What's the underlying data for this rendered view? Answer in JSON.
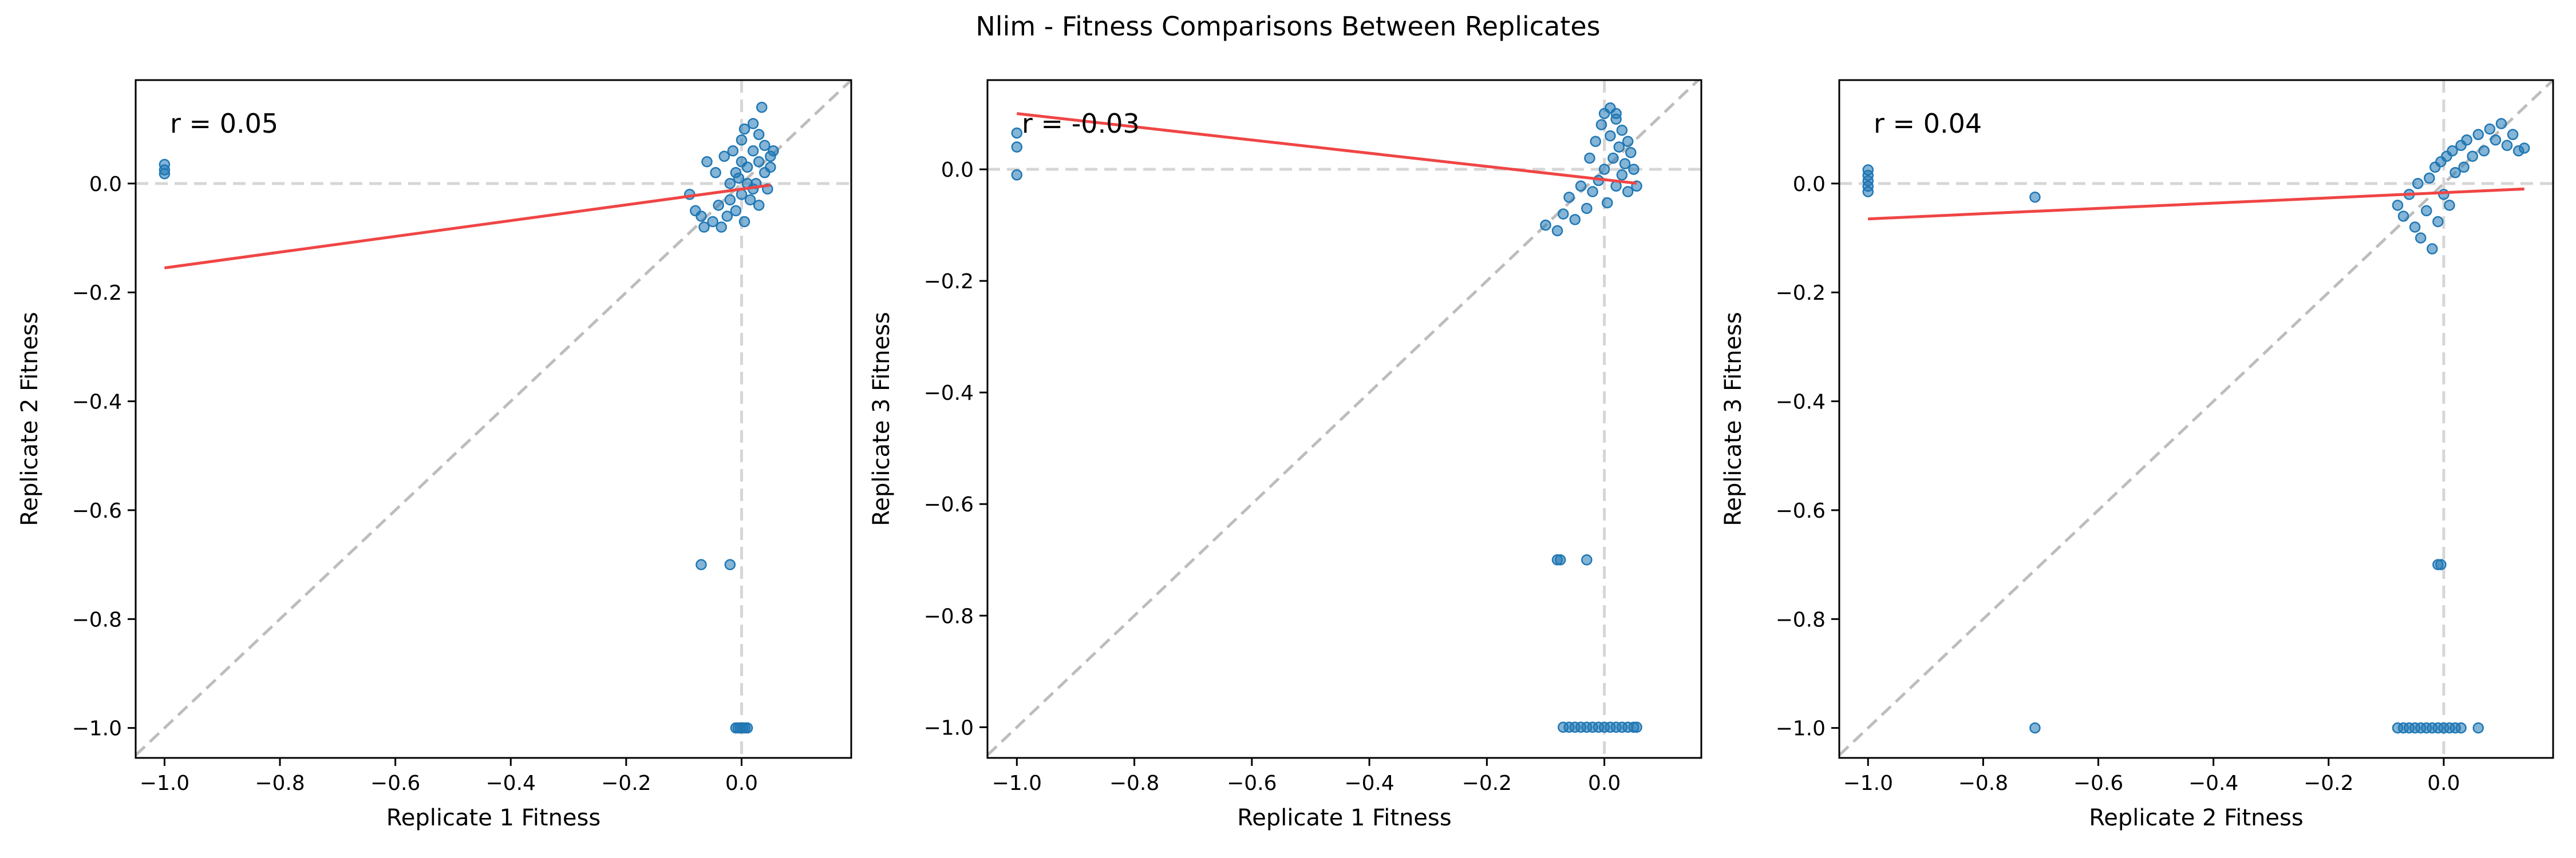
{
  "figure": {
    "title": "Nlim - Fitness Comparisons Between Replicates"
  },
  "chart_data": [
    {
      "type": "scatter",
      "xlabel": "Replicate 1 Fitness",
      "ylabel": "Replicate 2 Fitness",
      "xlim": [
        -1.05,
        0.19
      ],
      "ylim": [
        -1.055,
        0.19
      ],
      "xticks": [
        -1.0,
        -0.8,
        -0.6,
        -0.4,
        -0.2,
        0.0
      ],
      "yticks": [
        -1.0,
        -0.8,
        -0.6,
        -0.4,
        -0.2,
        0.0
      ],
      "annotation": "r = 0.05",
      "grid": false,
      "reference_lines": [
        "y = x (dashed gray)",
        "x = 0 (dashed)",
        "y = 0 (dashed)"
      ],
      "fit_line": {
        "x": [
          -1.0,
          0.05
        ],
        "y": [
          -0.155,
          -0.003
        ],
        "color": "#f04545"
      },
      "marker_color": "#1f77b4",
      "points": [
        [
          -1.0,
          0.035
        ],
        [
          -1.0,
          0.025
        ],
        [
          -1.0,
          0.018
        ],
        [
          -0.07,
          -0.7
        ],
        [
          -0.02,
          -0.7
        ],
        [
          -0.01,
          -1.0
        ],
        [
          -0.006,
          -1.0
        ],
        [
          -0.002,
          -1.0
        ],
        [
          0.002,
          -1.0
        ],
        [
          0.006,
          -1.0
        ],
        [
          0.01,
          -1.0
        ],
        [
          -0.09,
          -0.02
        ],
        [
          -0.08,
          -0.05
        ],
        [
          -0.07,
          -0.06
        ],
        [
          -0.065,
          -0.08
        ],
        [
          -0.06,
          0.04
        ],
        [
          -0.05,
          -0.07
        ],
        [
          -0.045,
          0.02
        ],
        [
          -0.04,
          -0.04
        ],
        [
          -0.035,
          -0.08
        ],
        [
          -0.03,
          0.05
        ],
        [
          -0.025,
          -0.06
        ],
        [
          -0.02,
          -0.03
        ],
        [
          -0.015,
          0.06
        ],
        [
          -0.01,
          -0.05
        ],
        [
          -0.005,
          0.01
        ],
        [
          0.0,
          -0.02
        ],
        [
          0.0,
          0.08
        ],
        [
          0.005,
          0.1
        ],
        [
          0.005,
          -0.07
        ],
        [
          0.01,
          0.03
        ],
        [
          0.015,
          -0.03
        ],
        [
          0.02,
          0.06
        ],
        [
          0.02,
          0.11
        ],
        [
          0.025,
          0.0
        ],
        [
          0.03,
          0.04
        ],
        [
          0.03,
          -0.04
        ],
        [
          0.035,
          0.14
        ],
        [
          0.04,
          0.07
        ],
        [
          0.04,
          0.02
        ],
        [
          0.045,
          -0.01
        ],
        [
          0.05,
          0.05
        ],
        [
          0.05,
          0.03
        ],
        [
          0.055,
          0.06
        ],
        [
          0.01,
          0.0
        ],
        [
          -0.01,
          0.02
        ],
        [
          0.0,
          0.04
        ],
        [
          0.02,
          -0.01
        ],
        [
          -0.02,
          0.0
        ],
        [
          0.03,
          0.09
        ]
      ]
    },
    {
      "type": "scatter",
      "xlabel": "Replicate 1 Fitness",
      "ylabel": "Replicate 3 Fitness",
      "xlim": [
        -1.05,
        0.165
      ],
      "ylim": [
        -1.055,
        0.16
      ],
      "xticks": [
        -1.0,
        -0.8,
        -0.6,
        -0.4,
        -0.2,
        0.0
      ],
      "yticks": [
        -1.0,
        -0.8,
        -0.6,
        -0.4,
        -0.2,
        0.0
      ],
      "annotation": "r = -0.03",
      "grid": false,
      "reference_lines": [
        "y = x (dashed gray)",
        "x = 0 (dashed)",
        "y = 0 (dashed)"
      ],
      "fit_line": {
        "x": [
          -1.0,
          0.055
        ],
        "y": [
          0.1,
          -0.025
        ],
        "color": "#f04545"
      },
      "marker_color": "#1f77b4",
      "points": [
        [
          -1.0,
          0.065
        ],
        [
          -1.0,
          0.04
        ],
        [
          -1.0,
          -0.01
        ],
        [
          -0.08,
          -0.7
        ],
        [
          -0.075,
          -0.7
        ],
        [
          -0.03,
          -0.7
        ],
        [
          -0.07,
          -1.0
        ],
        [
          -0.06,
          -1.0
        ],
        [
          -0.05,
          -1.0
        ],
        [
          -0.04,
          -1.0
        ],
        [
          -0.03,
          -1.0
        ],
        [
          -0.02,
          -1.0
        ],
        [
          -0.01,
          -1.0
        ],
        [
          0.0,
          -1.0
        ],
        [
          0.01,
          -1.0
        ],
        [
          0.02,
          -1.0
        ],
        [
          0.03,
          -1.0
        ],
        [
          0.04,
          -1.0
        ],
        [
          0.05,
          -1.0
        ],
        [
          0.055,
          -1.0
        ],
        [
          -0.1,
          -0.1
        ],
        [
          -0.08,
          -0.11
        ],
        [
          -0.07,
          -0.08
        ],
        [
          -0.06,
          -0.05
        ],
        [
          -0.05,
          -0.09
        ],
        [
          -0.04,
          -0.03
        ],
        [
          -0.03,
          -0.07
        ],
        [
          -0.025,
          0.02
        ],
        [
          -0.02,
          -0.04
        ],
        [
          -0.015,
          0.05
        ],
        [
          -0.01,
          -0.02
        ],
        [
          -0.005,
          0.08
        ],
        [
          0.0,
          0.0
        ],
        [
          0.0,
          0.1
        ],
        [
          0.005,
          -0.06
        ],
        [
          0.01,
          0.06
        ],
        [
          0.01,
          0.11
        ],
        [
          0.015,
          0.02
        ],
        [
          0.02,
          -0.03
        ],
        [
          0.02,
          0.09
        ],
        [
          0.025,
          0.04
        ],
        [
          0.03,
          -0.01
        ],
        [
          0.03,
          0.07
        ],
        [
          0.035,
          0.01
        ],
        [
          0.04,
          0.05
        ],
        [
          0.04,
          -0.04
        ],
        [
          0.045,
          0.03
        ],
        [
          0.05,
          0.0
        ],
        [
          0.055,
          -0.03
        ],
        [
          0.02,
          0.1
        ]
      ]
    },
    {
      "type": "scatter",
      "xlabel": "Replicate 2 Fitness",
      "ylabel": "Replicate 3 Fitness",
      "xlim": [
        -1.05,
        0.19
      ],
      "ylim": [
        -1.055,
        0.19
      ],
      "xticks": [
        -1.0,
        -0.8,
        -0.6,
        -0.4,
        -0.2,
        0.0
      ],
      "yticks": [
        -1.0,
        -0.8,
        -0.6,
        -0.4,
        -0.2,
        0.0
      ],
      "annotation": "r = 0.04",
      "grid": false,
      "reference_lines": [
        "y = x (dashed gray)",
        "x = 0 (dashed)",
        "y = 0 (dashed)"
      ],
      "fit_line": {
        "x": [
          -1.0,
          0.14
        ],
        "y": [
          -0.065,
          -0.01
        ],
        "color": "#f04545"
      },
      "marker_color": "#1f77b4",
      "points": [
        [
          -1.0,
          0.025
        ],
        [
          -1.0,
          0.015
        ],
        [
          -1.0,
          0.005
        ],
        [
          -1.0,
          -0.005
        ],
        [
          -1.0,
          -0.015
        ],
        [
          -0.71,
          -0.025
        ],
        [
          -0.71,
          -1.0
        ],
        [
          -0.01,
          -0.7
        ],
        [
          -0.005,
          -0.7
        ],
        [
          -0.08,
          -1.0
        ],
        [
          -0.07,
          -1.0
        ],
        [
          -0.06,
          -1.0
        ],
        [
          -0.05,
          -1.0
        ],
        [
          -0.04,
          -1.0
        ],
        [
          -0.03,
          -1.0
        ],
        [
          -0.02,
          -1.0
        ],
        [
          -0.01,
          -1.0
        ],
        [
          0.0,
          -1.0
        ],
        [
          0.01,
          -1.0
        ],
        [
          0.02,
          -1.0
        ],
        [
          0.03,
          -1.0
        ],
        [
          0.06,
          -1.0
        ],
        [
          -0.08,
          -0.04
        ],
        [
          -0.07,
          -0.06
        ],
        [
          -0.06,
          -0.02
        ],
        [
          -0.05,
          -0.08
        ],
        [
          -0.045,
          0.0
        ],
        [
          -0.04,
          -0.1
        ],
        [
          -0.03,
          -0.05
        ],
        [
          -0.025,
          0.01
        ],
        [
          -0.02,
          -0.12
        ],
        [
          -0.015,
          0.03
        ],
        [
          -0.01,
          -0.07
        ],
        [
          -0.005,
          0.04
        ],
        [
          0.0,
          -0.02
        ],
        [
          0.005,
          0.05
        ],
        [
          0.01,
          -0.04
        ],
        [
          0.015,
          0.06
        ],
        [
          0.02,
          0.02
        ],
        [
          0.03,
          0.07
        ],
        [
          0.035,
          0.03
        ],
        [
          0.04,
          0.08
        ],
        [
          0.05,
          0.05
        ],
        [
          0.06,
          0.09
        ],
        [
          0.07,
          0.06
        ],
        [
          0.08,
          0.1
        ],
        [
          0.09,
          0.08
        ],
        [
          0.1,
          0.11
        ],
        [
          0.11,
          0.07
        ],
        [
          0.13,
          0.06
        ],
        [
          0.14,
          0.065
        ],
        [
          0.12,
          0.09
        ]
      ]
    }
  ]
}
